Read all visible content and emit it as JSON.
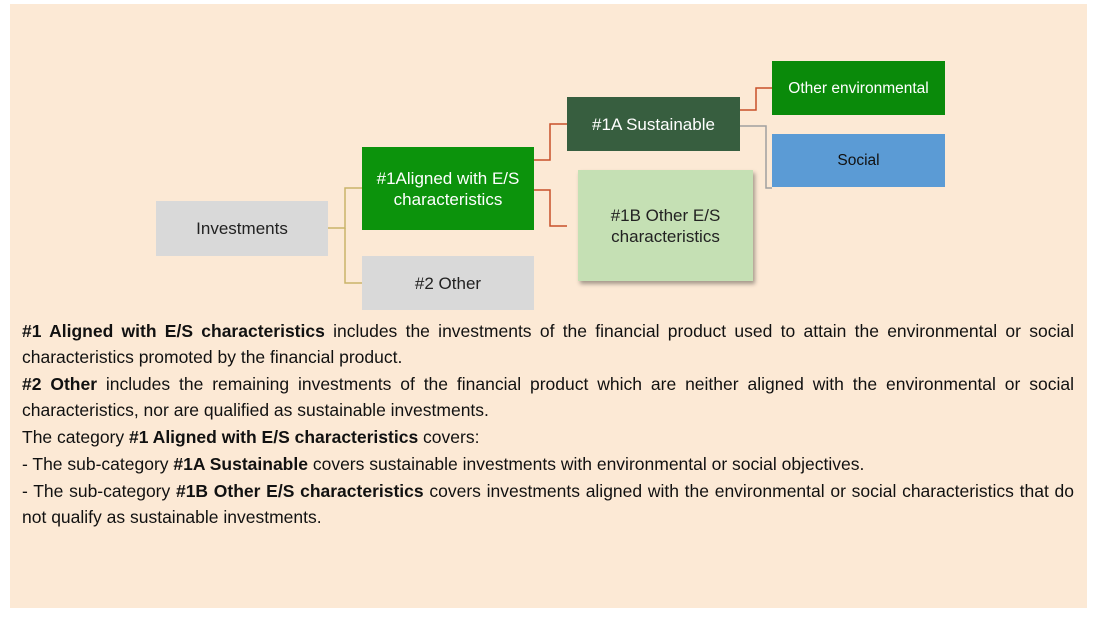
{
  "nodes": [
    {
      "id": "investments",
      "label": "Investments"
    },
    {
      "id": "aligned",
      "label": "#1Aligned with E/S characteristics"
    },
    {
      "id": "other",
      "label": "#2 Other"
    },
    {
      "id": "sustainable",
      "label": "#1A Sustainable"
    },
    {
      "id": "other-es",
      "label": "#1B Other E/S characteristics"
    },
    {
      "id": "other-env",
      "label": "Other environmental"
    },
    {
      "id": "social",
      "label": "Social"
    }
  ],
  "paragraphs": [
    [
      {
        "text": "#1 Aligned with E/S characteristics",
        "bold": true
      },
      {
        "text": " includes the investments of the financial product used to attain the environmental or social characteristics promoted by the financial product.",
        "bold": false
      }
    ],
    [
      {
        "text": "#2 Other",
        "bold": true
      },
      {
        "text": " includes the remaining investments of the financial product which are neither aligned with the environmental or social characteristics, nor are qualified as sustainable investments.",
        "bold": false
      }
    ],
    [
      {
        "text": "The category ",
        "bold": false
      },
      {
        "text": "#1 Aligned with E/S characteristics",
        "bold": true
      },
      {
        "text": " covers:",
        "bold": false
      }
    ],
    [
      {
        "text": "- The sub-category ",
        "bold": false
      },
      {
        "text": "#1A Sustainable",
        "bold": true
      },
      {
        "text": " covers sustainable investments with environmental or social objectives.",
        "bold": false
      }
    ],
    [
      {
        "text": "- The sub-category ",
        "bold": false
      },
      {
        "text": "#1B Other E/S characteristics",
        "bold": true
      },
      {
        "text": " covers investments aligned with the environmental or social characteristics that do not qualify as sustainable investments.",
        "bold": false
      }
    ]
  ]
}
